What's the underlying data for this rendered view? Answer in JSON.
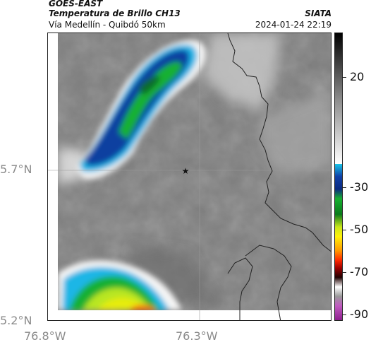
{
  "header": {
    "satellite": "GOES-EAST",
    "product": "Temperatura de Brillo CH13",
    "region": "Vía Medellín - Quibdó 50km",
    "agency": "SIATA",
    "datetime": "2024-01-24 22:19"
  },
  "map": {
    "lat_ticks": [
      "5.7°N",
      "5.2°N"
    ],
    "lon_ticks": [
      "76.8°W",
      "76.3°W"
    ],
    "gridlines": true,
    "marker": "star-marker",
    "colors": {
      "cloud_blue": "#0a3fa0",
      "cloud_cyan": "#1fb6e6",
      "cloud_green": "#18b030",
      "cloud_yellow": "#e6ec10",
      "cloud_orange": "#ff6a00",
      "background_gray": "#7f7f7f",
      "border_line": "#222222"
    }
  },
  "colorbar": {
    "labels": [
      "20",
      "-30",
      "-50",
      "-70",
      "-90"
    ]
  }
}
